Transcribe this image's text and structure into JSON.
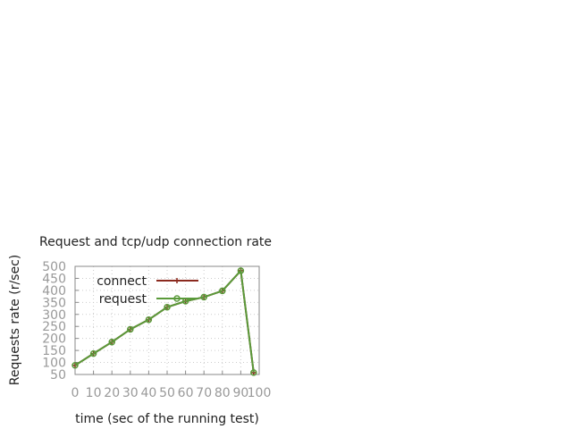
{
  "chart_data": {
    "type": "line",
    "title": "Request and tcp/udp connection rate",
    "xlabel": "time (sec of the running test)",
    "ylabel": "Requests rate (r/sec)",
    "xlim": [
      0,
      100
    ],
    "ylim": [
      50,
      500
    ],
    "xticks": [
      0,
      10,
      20,
      30,
      40,
      50,
      60,
      70,
      80,
      90,
      100
    ],
    "yticks": [
      50,
      100,
      150,
      200,
      250,
      300,
      350,
      400,
      450,
      500
    ],
    "grid": true,
    "legend": "top-left",
    "x": [
      0,
      10,
      20,
      30,
      40,
      50,
      60,
      70,
      80,
      90,
      97
    ],
    "series": [
      {
        "name": "connect",
        "color": "#8b2a1f",
        "marker": "plus",
        "values": [
          88,
          137,
          185,
          238,
          278,
          330,
          355,
          372,
          398,
          482,
          58
        ]
      },
      {
        "name": "request",
        "color": "#5a9a3a",
        "marker": "circle",
        "values": [
          88,
          137,
          185,
          238,
          278,
          330,
          355,
          372,
          398,
          482,
          58
        ]
      }
    ]
  }
}
